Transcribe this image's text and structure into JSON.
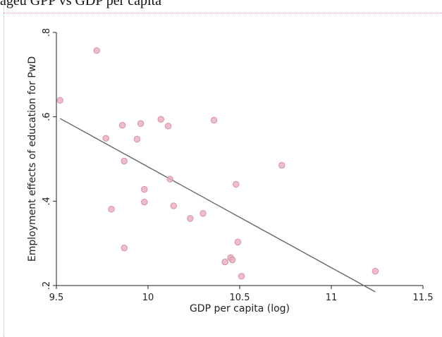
{
  "caption": "ageu GPP vs GDP per capita",
  "chart_data": {
    "type": "scatter",
    "title": "",
    "xlabel": "GDP per capita (log)",
    "ylabel": "Employment effects of education for PwD",
    "xlim": [
      9.5,
      11.5
    ],
    "ylim": [
      0.2,
      0.8
    ],
    "xticks": [
      9.5,
      10,
      10.5,
      11,
      11.5
    ],
    "xtick_labels": [
      "9.5",
      "10",
      "10.5",
      "11",
      "11.5"
    ],
    "yticks": [
      0.2,
      0.4,
      0.6,
      0.8
    ],
    "ytick_labels": [
      ".2",
      ".4",
      ".6",
      ".8"
    ],
    "grid": false,
    "point_color": "#e8aebb",
    "line_color": "#666666",
    "points": [
      {
        "x": 9.52,
        "y": 0.639
      },
      {
        "x": 9.72,
        "y": 0.757
      },
      {
        "x": 9.77,
        "y": 0.549
      },
      {
        "x": 9.8,
        "y": 0.381
      },
      {
        "x": 9.86,
        "y": 0.58
      },
      {
        "x": 9.87,
        "y": 0.495
      },
      {
        "x": 9.87,
        "y": 0.289
      },
      {
        "x": 9.94,
        "y": 0.547
      },
      {
        "x": 9.96,
        "y": 0.584
      },
      {
        "x": 9.98,
        "y": 0.428
      },
      {
        "x": 9.98,
        "y": 0.398
      },
      {
        "x": 10.07,
        "y": 0.594
      },
      {
        "x": 10.11,
        "y": 0.578
      },
      {
        "x": 10.12,
        "y": 0.452
      },
      {
        "x": 10.14,
        "y": 0.389
      },
      {
        "x": 10.23,
        "y": 0.359
      },
      {
        "x": 10.3,
        "y": 0.371
      },
      {
        "x": 10.36,
        "y": 0.592
      },
      {
        "x": 10.42,
        "y": 0.256
      },
      {
        "x": 10.45,
        "y": 0.266
      },
      {
        "x": 10.46,
        "y": 0.261
      },
      {
        "x": 10.48,
        "y": 0.44
      },
      {
        "x": 10.49,
        "y": 0.303
      },
      {
        "x": 10.51,
        "y": 0.222
      },
      {
        "x": 10.73,
        "y": 0.485
      },
      {
        "x": 11.24,
        "y": 0.234
      }
    ],
    "fit_line": {
      "x": [
        9.52,
        11.24
      ],
      "y": [
        0.596,
        0.185
      ]
    }
  }
}
